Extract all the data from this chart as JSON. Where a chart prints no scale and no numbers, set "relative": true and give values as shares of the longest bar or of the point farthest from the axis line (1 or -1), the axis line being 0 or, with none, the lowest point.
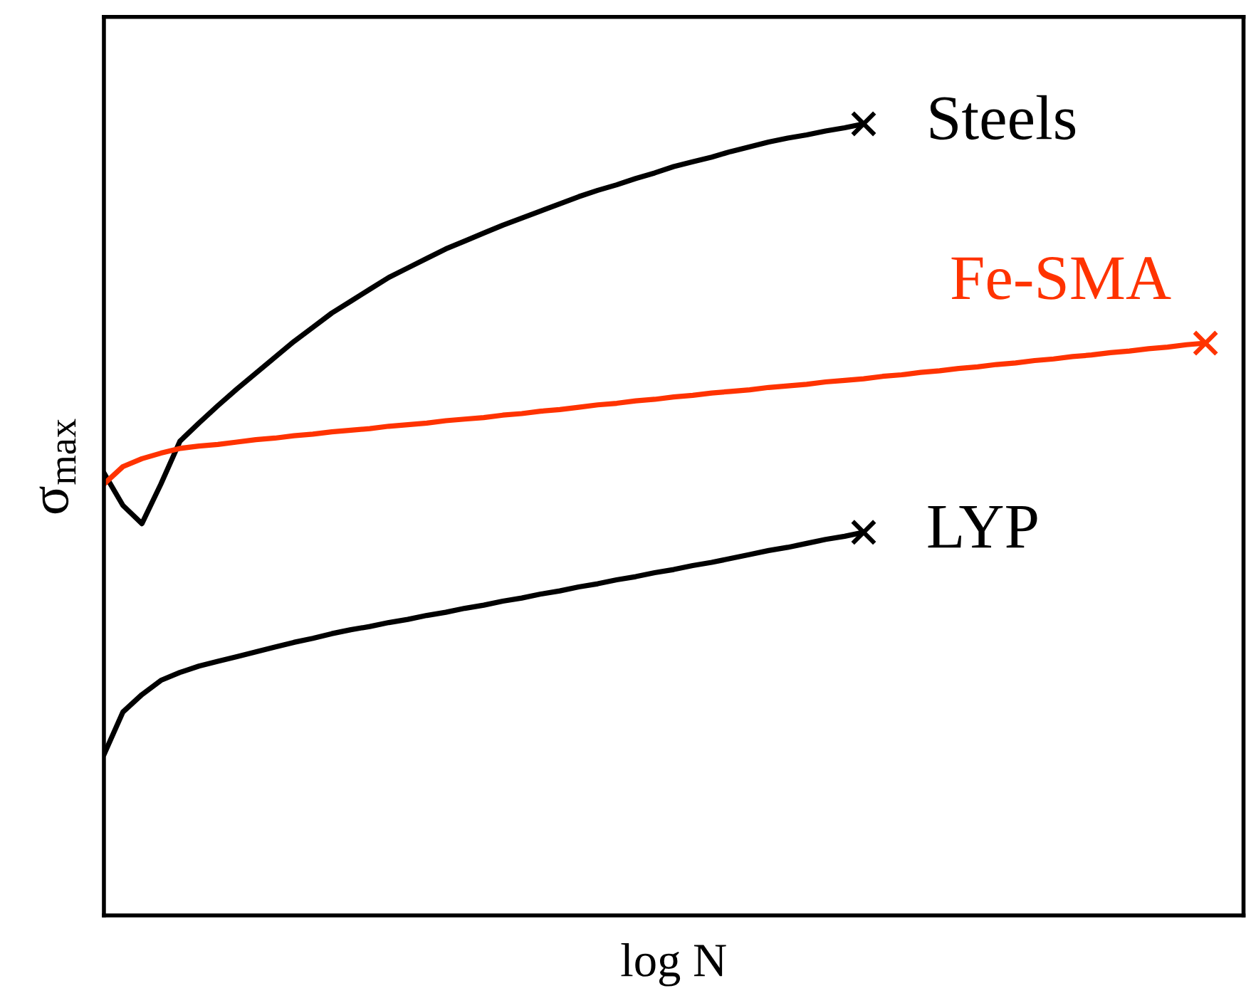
{
  "chart_data": {
    "type": "line",
    "relative": true,
    "xlabel": "log N",
    "ylabel": "σ$_{max}$",
    "legend": false,
    "line_style": "solid",
    "categories": [
      null,
      null,
      null,
      null,
      null,
      null,
      null,
      null,
      null,
      null,
      null,
      null,
      null,
      null,
      null,
      null,
      null,
      null,
      null,
      null,
      null,
      null,
      null,
      null,
      null,
      null,
      null,
      null,
      null,
      null,
      null,
      null,
      null,
      null,
      null,
      null,
      null,
      null,
      null,
      null,
      null,
      null,
      null,
      null,
      null,
      null,
      null,
      null,
      null,
      null,
      null,
      null,
      null,
      null,
      null,
      null,
      null,
      null,
      null
    ],
    "series": [
      {
        "name": "Steels",
        "color": "#000000",
        "values": [
          0.559,
          0.518,
          0.495,
          0.545,
          0.599,
          0.622,
          0.644,
          0.665,
          0.685,
          0.705,
          0.725,
          0.743,
          0.761,
          0.776,
          0.791,
          0.806,
          0.818,
          0.83,
          0.842,
          0.852,
          0.862,
          0.872,
          0.881,
          0.89,
          0.899,
          0.908,
          0.916,
          0.923,
          0.931,
          0.938,
          0.946,
          0.952,
          0.958,
          0.965,
          0.971,
          0.977,
          0.982,
          0.986,
          0.991,
          0.995,
          1.0,
          null,
          null,
          null,
          null,
          null,
          null,
          null,
          null,
          null,
          null,
          null,
          null,
          null,
          null,
          null,
          null,
          null,
          null
        ]
      },
      {
        "name": "Fe-SMA",
        "color": "#ff3300",
        "values": [
          0.545,
          0.567,
          0.577,
          0.584,
          0.59,
          0.593,
          0.595,
          0.598,
          0.601,
          0.603,
          0.606,
          0.608,
          0.611,
          0.613,
          0.615,
          0.618,
          0.62,
          0.622,
          0.625,
          0.627,
          0.629,
          0.632,
          0.634,
          0.637,
          0.639,
          0.642,
          0.645,
          0.647,
          0.65,
          0.652,
          0.655,
          0.657,
          0.66,
          0.662,
          0.664,
          0.667,
          0.669,
          0.671,
          0.674,
          0.676,
          0.678,
          0.681,
          0.683,
          0.686,
          0.688,
          0.691,
          0.693,
          0.696,
          0.698,
          0.701,
          0.703,
          0.706,
          0.708,
          0.711,
          0.713,
          0.716,
          0.718,
          0.721,
          0.723
        ]
      },
      {
        "name": "LYP",
        "color": "#000000",
        "values": [
          0.203,
          0.257,
          0.279,
          0.297,
          0.307,
          0.315,
          0.321,
          0.327,
          0.333,
          0.339,
          0.345,
          0.35,
          0.356,
          0.361,
          0.365,
          0.37,
          0.374,
          0.379,
          0.383,
          0.388,
          0.392,
          0.397,
          0.401,
          0.406,
          0.41,
          0.415,
          0.419,
          0.424,
          0.428,
          0.433,
          0.437,
          0.442,
          0.446,
          0.451,
          0.456,
          0.461,
          0.465,
          0.47,
          0.475,
          0.479,
          0.484,
          null,
          null,
          null,
          null,
          null,
          null,
          null,
          null,
          null,
          null,
          null,
          null,
          null,
          null,
          null,
          null,
          null,
          null
        ]
      }
    ]
  }
}
